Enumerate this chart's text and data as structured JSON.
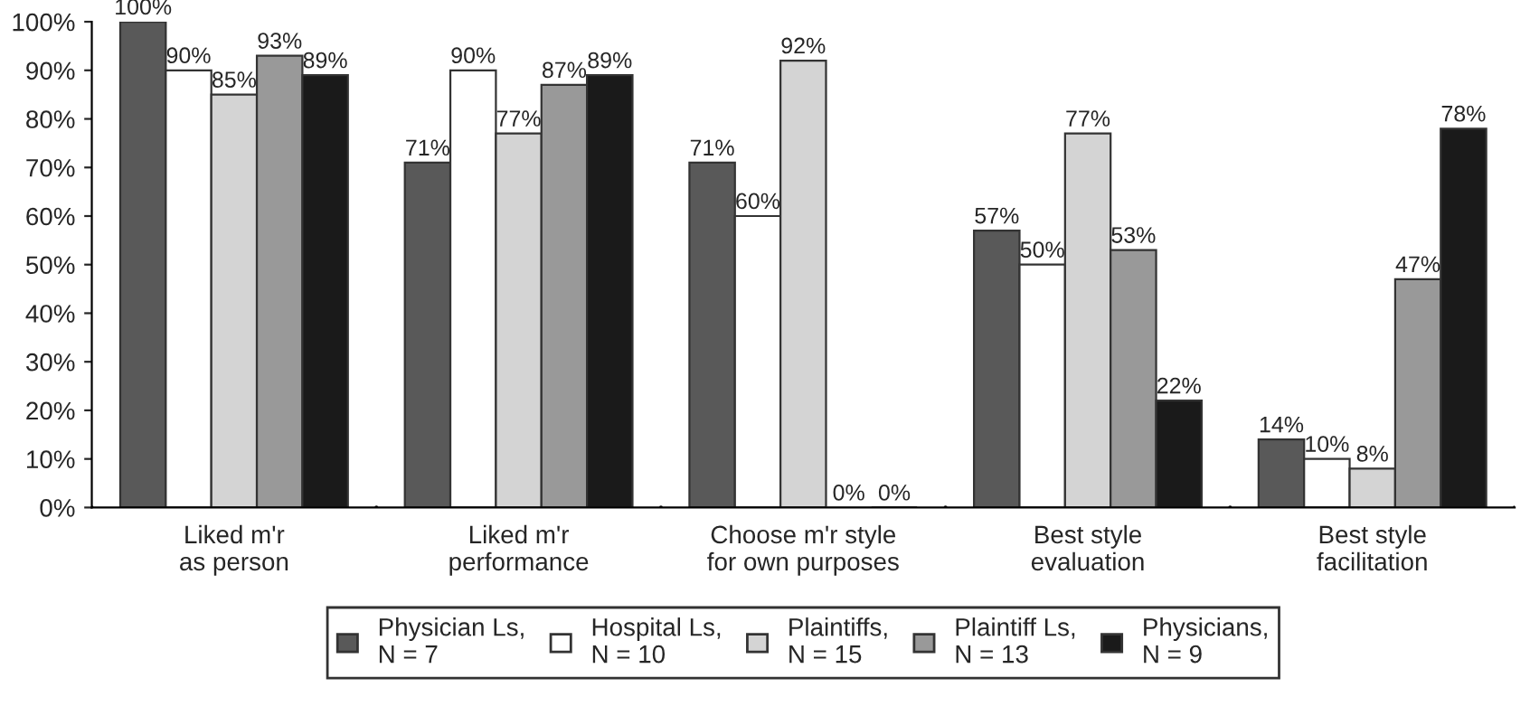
{
  "chart_data": {
    "type": "bar",
    "categories": [
      "Liked m'r\nas person",
      "Liked m'r\nperformance",
      "Choose m'r style\nfor own purposes",
      "Best style\nevaluation",
      "Best style\nfacilitation"
    ],
    "series": [
      {
        "name": "Physician Ls,\nN = 7",
        "color": "#595959",
        "values": [
          100,
          71,
          71,
          57,
          14
        ],
        "value_labels": [
          "100%",
          "71%",
          "71%",
          "57%",
          "14%"
        ]
      },
      {
        "name": "Hospital Ls,\nN = 10",
        "color": "#ffffff",
        "values": [
          90,
          90,
          60,
          50,
          10
        ],
        "value_labels": [
          "90%",
          "90%",
          "60%",
          "50%",
          "10%"
        ]
      },
      {
        "name": "Plaintiffs,\nN = 15",
        "color": "#d4d4d4",
        "values": [
          85,
          77,
          92,
          77,
          8
        ],
        "value_labels": [
          "85%",
          "77%",
          "92%",
          "77%",
          "8%"
        ]
      },
      {
        "name": "Plaintiff Ls,\nN = 13",
        "color": "#999999",
        "values": [
          93,
          87,
          0,
          53,
          47
        ],
        "value_labels": [
          "93%",
          "87%",
          "0%",
          "53%",
          "47%"
        ]
      },
      {
        "name": "Physicians,\nN = 9",
        "color": "#1a1a1a",
        "values": [
          89,
          89,
          0,
          22,
          78
        ],
        "value_labels": [
          "89%",
          "89%",
          "0%",
          "22%",
          "78%"
        ]
      }
    ],
    "ylim": [
      0,
      100
    ],
    "yticks": [
      {
        "value": 0,
        "label": "0%"
      },
      {
        "value": 10,
        "label": "10%"
      },
      {
        "value": 20,
        "label": "20%"
      },
      {
        "value": 30,
        "label": "30%"
      },
      {
        "value": 40,
        "label": "40%"
      },
      {
        "value": 50,
        "label": "50%"
      },
      {
        "value": 60,
        "label": "60%"
      },
      {
        "value": 70,
        "label": "70%"
      },
      {
        "value": 80,
        "label": "80%"
      },
      {
        "value": 90,
        "label": "90%"
      },
      {
        "value": 100,
        "label": "100%"
      }
    ],
    "legend": "bottom",
    "grid": false
  }
}
